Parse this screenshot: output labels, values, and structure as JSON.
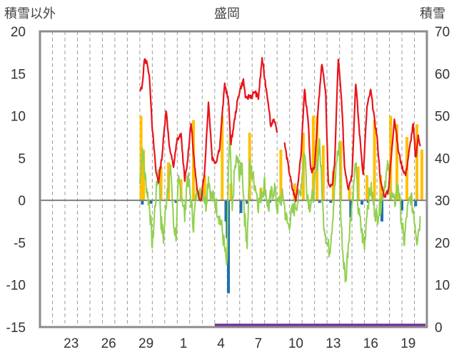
{
  "chart_data": {
    "type": "line",
    "title": "盛岡",
    "y_left_label": "積雪以外",
    "y_right_label": "積雪",
    "y_left_ticks": [
      "20",
      "15",
      "10",
      "5",
      "0",
      "-5",
      "-10",
      "-15"
    ],
    "y_right_ticks": [
      "70",
      "60",
      "50",
      "40",
      "30",
      "20",
      "10",
      "0"
    ],
    "ylim_left": [
      -15,
      20
    ],
    "ylim_right": [
      0,
      70
    ],
    "x_tick_labels": [
      "23",
      "26",
      "29",
      "1",
      "4",
      "7",
      "10",
      "13",
      "16",
      "19"
    ],
    "x_label_days": [
      2.5,
      5.5,
      8.5,
      11.5,
      14.5,
      17.5,
      20.5,
      23.5,
      26.5,
      29.5
    ],
    "x_day_count": 31,
    "grid": "vertical dashed lines at day boundaries",
    "colors": {
      "temperature": "#e8141c",
      "diff": "#92d050",
      "snowfall": "#ffc000",
      "precip": "#1f6fb0",
      "snow_depth": "#7030a0",
      "zero_line": "#808080",
      "frame": "#8c8c8c"
    },
    "series": [
      {
        "key": "temperature",
        "start_day": 8.0,
        "end_day": 31.0,
        "anchors": [
          [
            8.0,
            12.8
          ],
          [
            8.2,
            13.6
          ],
          [
            8.35,
            16.6
          ],
          [
            8.6,
            16.3
          ],
          [
            8.8,
            14.0
          ],
          [
            9.0,
            8.5
          ],
          [
            9.3,
            3.3
          ],
          [
            9.5,
            2.2
          ],
          [
            9.8,
            5.5
          ],
          [
            10.1,
            10.8
          ],
          [
            10.4,
            6.0
          ],
          [
            10.7,
            4.0
          ],
          [
            11.0,
            7.2
          ],
          [
            11.3,
            7.8
          ],
          [
            11.6,
            2.3
          ],
          [
            11.8,
            4.3
          ],
          [
            12.1,
            9.3
          ],
          [
            12.3,
            5.5
          ],
          [
            12.6,
            1.0
          ],
          [
            12.9,
            0.0
          ],
          [
            13.2,
            3.6
          ],
          [
            13.5,
            11.7
          ],
          [
            13.8,
            5.0
          ],
          [
            14.1,
            4.5
          ],
          [
            14.4,
            6.3
          ],
          [
            14.8,
            13.8
          ],
          [
            15.1,
            11.8
          ],
          [
            15.3,
            6.6
          ],
          [
            15.5,
            8.6
          ],
          [
            15.8,
            11.5
          ],
          [
            16.0,
            13.0
          ],
          [
            16.3,
            14.2
          ],
          [
            16.5,
            11.9
          ],
          [
            16.8,
            12.4
          ],
          [
            17.0,
            12.3
          ],
          [
            17.2,
            12.9
          ],
          [
            17.5,
            12.1
          ],
          [
            17.8,
            16.8
          ],
          [
            18.0,
            14.5
          ],
          [
            18.3,
            11.5
          ],
          [
            18.5,
            8.7
          ],
          [
            18.7,
            9.7
          ],
          [
            19.0,
            8.0
          ]
        ]
      },
      {
        "key": "temperature",
        "start_day": 19.6,
        "end_day": 31.0,
        "anchors": [
          [
            19.6,
            6.7
          ],
          [
            19.9,
            4.0
          ],
          [
            20.2,
            1.5
          ],
          [
            20.5,
            0.0
          ],
          [
            20.9,
            5.0
          ],
          [
            21.2,
            13.2
          ],
          [
            21.5,
            9.0
          ],
          [
            21.7,
            3.4
          ],
          [
            22.0,
            4.0
          ],
          [
            22.3,
            11.0
          ],
          [
            22.6,
            16.3
          ],
          [
            22.9,
            12.3
          ],
          [
            23.1,
            2.0
          ],
          [
            23.4,
            1.5
          ],
          [
            23.6,
            4.0
          ],
          [
            23.9,
            16.8
          ],
          [
            24.2,
            11.0
          ],
          [
            24.4,
            4.0
          ],
          [
            24.7,
            1.5
          ],
          [
            25.0,
            3.0
          ],
          [
            25.3,
            14.0
          ],
          [
            25.6,
            8.0
          ],
          [
            25.9,
            3.0
          ],
          [
            26.2,
            11.0
          ],
          [
            26.5,
            13.0
          ],
          [
            26.8,
            9.5
          ],
          [
            27.0,
            7.6
          ],
          [
            27.3,
            2.0
          ],
          [
            27.6,
            0.5
          ],
          [
            27.9,
            1.0
          ],
          [
            28.2,
            6.0
          ],
          [
            28.4,
            9.8
          ],
          [
            28.7,
            6.0
          ],
          [
            29.0,
            4.0
          ],
          [
            29.3,
            3.0
          ],
          [
            29.6,
            6.0
          ],
          [
            29.9,
            9.0
          ],
          [
            30.1,
            5.0
          ],
          [
            30.3,
            7.5
          ],
          [
            30.5,
            6.5
          ]
        ]
      },
      {
        "key": "diff",
        "anchors": [
          [
            8.0,
            2.0
          ],
          [
            8.2,
            6.2
          ],
          [
            8.4,
            3.0
          ],
          [
            8.6,
            1.0
          ],
          [
            8.8,
            -1.0
          ],
          [
            9.0,
            -5.5
          ],
          [
            9.2,
            -1.0
          ],
          [
            9.5,
            4.0
          ],
          [
            9.7,
            -2.5
          ],
          [
            9.9,
            -4.5
          ],
          [
            10.2,
            1.5
          ],
          [
            10.5,
            3.5
          ],
          [
            10.7,
            -3.0
          ],
          [
            10.9,
            -4.0
          ],
          [
            11.1,
            2.0
          ],
          [
            11.4,
            0.5
          ],
          [
            11.6,
            -2.0
          ],
          [
            11.8,
            3.0
          ],
          [
            12.1,
            0.0
          ],
          [
            12.3,
            -3.0
          ],
          [
            12.6,
            2.0
          ],
          [
            12.8,
            0.5
          ],
          [
            13.0,
            1.5
          ],
          [
            13.3,
            -0.5
          ],
          [
            13.5,
            3.0
          ],
          [
            13.7,
            0.5
          ],
          [
            14.0,
            0.0
          ],
          [
            14.3,
            -1.5
          ],
          [
            14.6,
            -3.5
          ],
          [
            14.9,
            -7.0
          ],
          [
            15.0,
            -8.0
          ],
          [
            15.1,
            4.0
          ],
          [
            15.2,
            7.5
          ],
          [
            15.4,
            -1.5
          ],
          [
            15.6,
            3.5
          ],
          [
            15.8,
            5.0
          ],
          [
            16.0,
            3.0
          ],
          [
            16.2,
            4.0
          ],
          [
            16.4,
            -2.0
          ],
          [
            16.6,
            -5.0
          ],
          [
            16.8,
            4.0
          ],
          [
            17.0,
            3.0
          ],
          [
            17.3,
            1.5
          ],
          [
            17.5,
            -0.5
          ],
          [
            17.8,
            1.0
          ],
          [
            18.0,
            2.0
          ],
          [
            18.3,
            -1.0
          ],
          [
            18.5,
            0.5
          ],
          [
            18.8,
            1.5
          ],
          [
            19.0,
            -1.0
          ],
          [
            19.2,
            0.0
          ],
          [
            19.5,
            0.5
          ],
          [
            19.7,
            -2.0
          ],
          [
            19.9,
            -3.0
          ],
          [
            20.2,
            -1.5
          ],
          [
            20.5,
            -0.5
          ],
          [
            20.8,
            0.5
          ],
          [
            21.0,
            3.0
          ],
          [
            21.2,
            6.0
          ],
          [
            21.4,
            1.0
          ],
          [
            21.6,
            -0.5
          ],
          [
            21.9,
            0.5
          ],
          [
            22.2,
            4.0
          ],
          [
            22.4,
            7.0
          ],
          [
            22.7,
            -2.0
          ],
          [
            23.0,
            -5.0
          ],
          [
            23.2,
            -6.0
          ],
          [
            23.4,
            -3.0
          ],
          [
            23.6,
            1.0
          ],
          [
            23.8,
            5.0
          ],
          [
            24.0,
            6.5
          ],
          [
            24.1,
            -2.0
          ],
          [
            24.3,
            -7.0
          ],
          [
            24.5,
            -9.5
          ],
          [
            24.7,
            -5.0
          ],
          [
            24.9,
            -2.0
          ],
          [
            25.1,
            1.0
          ],
          [
            25.3,
            4.5
          ],
          [
            25.5,
            -1.0
          ],
          [
            25.8,
            -4.0
          ],
          [
            26.0,
            -5.5
          ],
          [
            26.2,
            -1.0
          ],
          [
            26.5,
            1.5
          ],
          [
            26.8,
            -1.0
          ],
          [
            27.0,
            -2.0
          ],
          [
            27.3,
            -0.5
          ],
          [
            27.6,
            2.0
          ],
          [
            27.9,
            4.0
          ],
          [
            28.1,
            1.0
          ],
          [
            28.4,
            -0.5
          ],
          [
            28.7,
            2.0
          ],
          [
            29.0,
            -3.0
          ],
          [
            29.2,
            -5.0
          ],
          [
            29.4,
            -1.5
          ],
          [
            29.7,
            0.5
          ],
          [
            30.0,
            -2.0
          ],
          [
            30.2,
            -4.5
          ],
          [
            30.5,
            -2.0
          ]
        ]
      }
    ],
    "snowfall_bars": [
      [
        8.1,
        10.0
      ],
      [
        8.3,
        6.0
      ],
      [
        9.7,
        4.0
      ],
      [
        10.3,
        4.5
      ],
      [
        11.3,
        2.5
      ],
      [
        12.3,
        9.5
      ],
      [
        13.2,
        3.0
      ],
      [
        14.6,
        10.0
      ],
      [
        15.3,
        2.0
      ],
      [
        16.8,
        8.0
      ],
      [
        17.7,
        1.5
      ],
      [
        19.3,
        6.0
      ],
      [
        20.4,
        2.0
      ],
      [
        21.1,
        8.0
      ],
      [
        21.9,
        10.0
      ],
      [
        22.2,
        10.0
      ],
      [
        22.7,
        6.5
      ],
      [
        23.5,
        3.5
      ],
      [
        24.1,
        7.0
      ],
      [
        24.8,
        1.5
      ],
      [
        25.5,
        4.0
      ],
      [
        26.2,
        3.0
      ],
      [
        26.8,
        9.5
      ],
      [
        27.3,
        3.0
      ],
      [
        28.1,
        10.0
      ],
      [
        28.6,
        9.0
      ],
      [
        29.4,
        7.5
      ],
      [
        30.2,
        9.0
      ],
      [
        30.6,
        6.0
      ]
    ],
    "precip_bars": [
      [
        8.2,
        -0.5
      ],
      [
        8.9,
        -0.4
      ],
      [
        10.9,
        -0.3
      ],
      [
        14.9,
        -2.5
      ],
      [
        15.0,
        -4.5
      ],
      [
        15.1,
        -11.0
      ],
      [
        16.1,
        -1.5
      ],
      [
        16.6,
        -0.4
      ],
      [
        17.5,
        -0.3
      ],
      [
        18.4,
        -0.3
      ],
      [
        22.4,
        -0.3
      ],
      [
        23.3,
        -0.3
      ],
      [
        24.9,
        -2.0
      ],
      [
        25.8,
        -0.5
      ],
      [
        26.3,
        -0.3
      ],
      [
        27.4,
        -2.5
      ],
      [
        29.0,
        -1.2
      ],
      [
        30.1,
        -0.7
      ]
    ],
    "snow_depth": [
      [
        14.0,
        0.3
      ],
      [
        31.0,
        0.3
      ]
    ]
  }
}
